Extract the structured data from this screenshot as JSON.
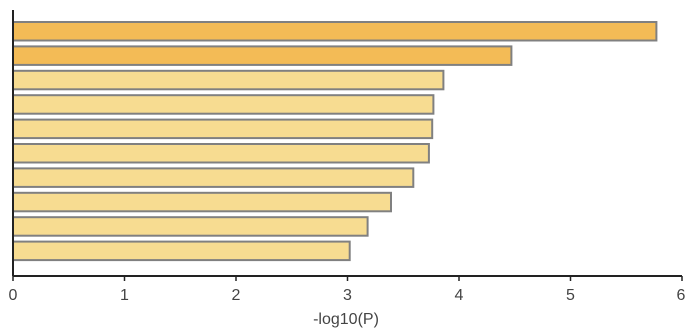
{
  "chart_data": {
    "type": "bar",
    "orientation": "horizontal",
    "categories": [
      "",
      "",
      "",
      "",
      "",
      "",
      "",
      "",
      "",
      ""
    ],
    "values": [
      5.77,
      4.47,
      3.86,
      3.77,
      3.76,
      3.73,
      3.59,
      3.39,
      3.18,
      3.02
    ],
    "title": "",
    "xlabel": "-log10(P)",
    "ylabel": "",
    "xlim": [
      0,
      6
    ],
    "xticks": [
      "0",
      "1",
      "2",
      "3",
      "4",
      "5",
      "6"
    ],
    "grid": false,
    "legend": "none",
    "colors": {
      "strong": "#f3bb56",
      "light": "#f7dc91",
      "bar_border": "#808080",
      "axis": "#222222"
    },
    "strong_count": 2
  }
}
